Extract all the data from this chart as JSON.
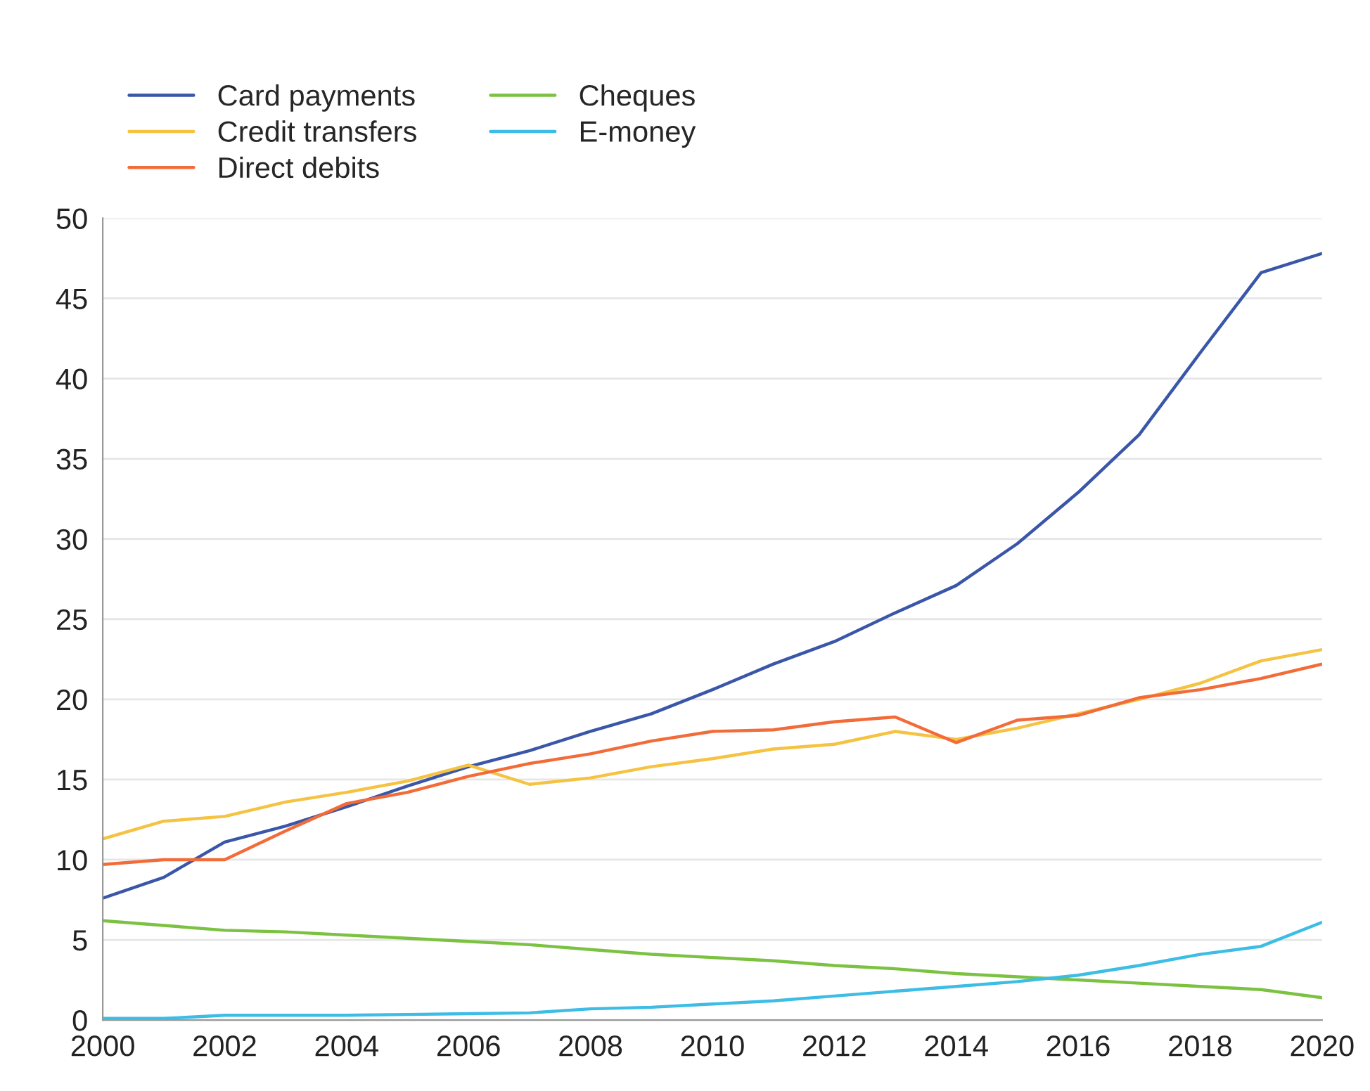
{
  "chart_data": {
    "type": "line",
    "x": [
      2000,
      2001,
      2002,
      2003,
      2004,
      2005,
      2006,
      2007,
      2008,
      2009,
      2010,
      2011,
      2012,
      2013,
      2014,
      2015,
      2016,
      2017,
      2018,
      2019,
      2020
    ],
    "series": [
      {
        "name": "Card payments",
        "color": "#3a56a8",
        "values": [
          7.6,
          8.9,
          11.1,
          12.1,
          13.3,
          14.6,
          15.8,
          16.8,
          18.0,
          19.1,
          20.6,
          22.2,
          23.6,
          25.4,
          27.1,
          29.7,
          32.9,
          36.5,
          41.6,
          46.6,
          47.8
        ]
      },
      {
        "name": "Credit transfers",
        "color": "#f5c242",
        "values": [
          11.3,
          12.4,
          12.7,
          13.6,
          14.2,
          14.9,
          15.9,
          14.7,
          15.1,
          15.8,
          16.3,
          16.9,
          17.2,
          18.0,
          17.5,
          18.2,
          19.1,
          20.0,
          21.0,
          22.4,
          23.1
        ]
      },
      {
        "name": "Direct debits",
        "color": "#f26b38",
        "values": [
          9.7,
          10.0,
          10.0,
          11.8,
          13.5,
          14.2,
          15.2,
          16.0,
          16.6,
          17.4,
          18.0,
          18.1,
          18.6,
          18.9,
          17.3,
          18.7,
          19.0,
          20.1,
          20.6,
          21.3,
          22.2
        ]
      },
      {
        "name": "Cheques",
        "color": "#7cc242",
        "values": [
          6.2,
          5.9,
          5.6,
          5.5,
          5.3,
          5.1,
          4.9,
          4.7,
          4.4,
          4.1,
          3.9,
          3.7,
          3.4,
          3.2,
          2.9,
          2.7,
          2.5,
          2.3,
          2.1,
          1.9,
          1.4
        ]
      },
      {
        "name": "E-money",
        "color": "#3dbde6",
        "values": [
          0.1,
          0.1,
          0.3,
          0.3,
          0.3,
          0.35,
          0.4,
          0.45,
          0.7,
          0.8,
          1.0,
          1.2,
          1.5,
          1.8,
          2.1,
          2.4,
          2.8,
          3.4,
          4.1,
          4.6,
          6.1
        ]
      }
    ],
    "xlim": [
      2000,
      2020
    ],
    "xticks": [
      2000,
      2002,
      2004,
      2006,
      2008,
      2010,
      2012,
      2014,
      2016,
      2018,
      2020
    ],
    "ylim": [
      0,
      50
    ],
    "yticks": [
      0,
      5,
      10,
      15,
      20,
      25,
      30,
      35,
      40,
      45,
      50
    ],
    "grid": "y",
    "legend": "top left",
    "marker": "none",
    "line_style": "solid"
  }
}
